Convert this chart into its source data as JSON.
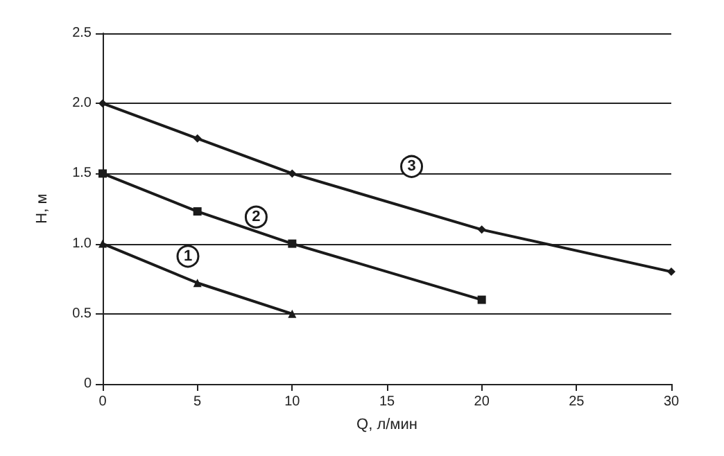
{
  "chart_data": {
    "type": "line",
    "xlabel": "Q, л/мин",
    "ylabel": "H, м",
    "xlim": [
      0,
      30
    ],
    "xticks": [
      0,
      5,
      10,
      15,
      20,
      25,
      30
    ],
    "ylim": [
      0,
      2.5
    ],
    "yticks": [
      0,
      0.5,
      {
        "value": 1,
        "label": "1.0"
      },
      1.5,
      {
        "value": 2,
        "label": "2.0"
      },
      2.5
    ],
    "grid": "y",
    "series": [
      {
        "x": [
          0,
          5,
          10
        ],
        "values": [
          1.0,
          0.72,
          0.5
        ],
        "color": "#1a1a1a",
        "marker": "triangle"
      },
      {
        "x": [
          0,
          5,
          10,
          20
        ],
        "values": [
          1.5,
          1.23,
          1.0,
          0.6
        ],
        "color": "#1a1a1a",
        "marker": "square"
      },
      {
        "x": [
          0,
          5,
          10,
          20,
          30
        ],
        "values": [
          2.0,
          1.75,
          1.5,
          1.1,
          0.8
        ],
        "color": "#1a1a1a",
        "marker": "diamond"
      }
    ],
    "annotations": [
      {
        "text": "1",
        "x": 4.5,
        "y": 0.91
      },
      {
        "text": "2",
        "x": 8.1,
        "y": 1.19
      },
      {
        "text": "3",
        "x": 16.3,
        "y": 1.55
      }
    ]
  }
}
